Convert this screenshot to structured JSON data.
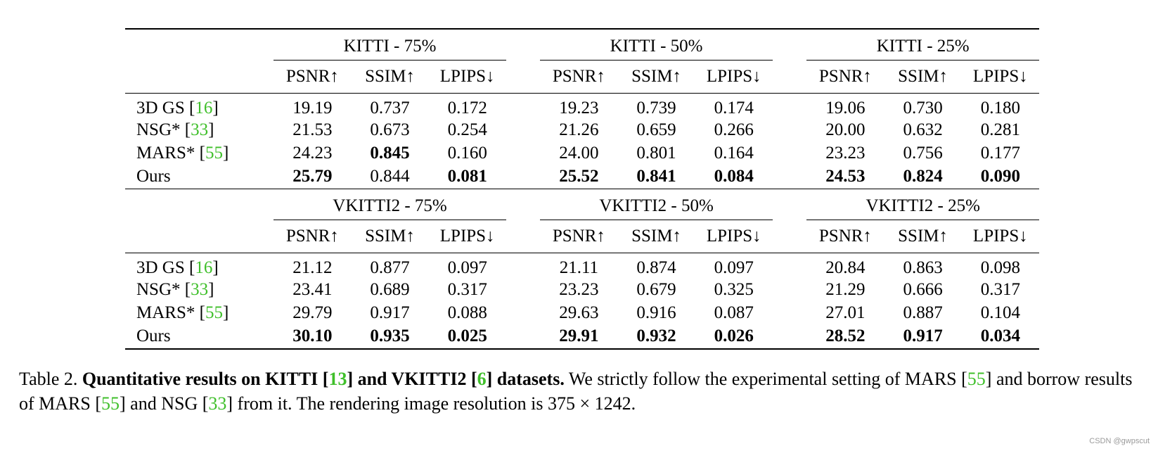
{
  "table": {
    "groups": [
      {
        "titles": [
          "KITTI - 75%",
          "KITTI - 50%",
          "KITTI - 25%"
        ],
        "metrics": [
          "PSNR↑",
          "SSIM↑",
          "LPIPS↓"
        ],
        "rows": [
          {
            "method": "3D GS [",
            "ref": "16",
            "close": "]",
            "values": [
              "19.19",
              "0.737",
              "0.172",
              "19.23",
              "0.739",
              "0.174",
              "19.06",
              "0.730",
              "0.180"
            ]
          },
          {
            "method": "NSG* [",
            "ref": "33",
            "close": "]",
            "values": [
              "21.53",
              "0.673",
              "0.254",
              "21.26",
              "0.659",
              "0.266",
              "20.00",
              "0.632",
              "0.281"
            ]
          },
          {
            "method": "MARS* [",
            "ref": "55",
            "close": "]",
            "values": [
              "24.23",
              "0.845",
              "0.160",
              "24.00",
              "0.801",
              "0.164",
              "23.23",
              "0.756",
              "0.177"
            ]
          },
          {
            "method": "Ours",
            "ref": "",
            "close": "",
            "values": [
              "25.79",
              "0.844",
              "0.081",
              "25.52",
              "0.841",
              "0.084",
              "24.53",
              "0.824",
              "0.090"
            ]
          }
        ]
      },
      {
        "titles": [
          "VKITTI2 - 75%",
          "VKITTI2 - 50%",
          "VKITTI2 - 25%"
        ],
        "metrics": [
          "PSNR↑",
          "SSIM↑",
          "LPIPS↓"
        ],
        "rows": [
          {
            "method": "3D GS [",
            "ref": "16",
            "close": "]",
            "values": [
              "21.12",
              "0.877",
              "0.097",
              "21.11",
              "0.874",
              "0.097",
              "20.84",
              "0.863",
              "0.098"
            ]
          },
          {
            "method": "NSG* [",
            "ref": "33",
            "close": "]",
            "values": [
              "23.41",
              "0.689",
              "0.317",
              "23.23",
              "0.679",
              "0.325",
              "21.29",
              "0.666",
              "0.317"
            ]
          },
          {
            "method": "MARS* [",
            "ref": "55",
            "close": "]",
            "values": [
              "29.79",
              "0.917",
              "0.088",
              "29.63",
              "0.916",
              "0.087",
              "27.01",
              "0.887",
              "0.104"
            ]
          },
          {
            "method": "Ours",
            "ref": "",
            "close": "",
            "values": [
              "30.10",
              "0.935",
              "0.025",
              "29.91",
              "0.932",
              "0.026",
              "28.52",
              "0.917",
              "0.034"
            ]
          }
        ]
      }
    ]
  },
  "caption": {
    "label": "Table 2.",
    "bold_1": "Quantitative results on KITTI [",
    "ref_1": "13",
    "bold_2": "] and VKITTI2 [",
    "ref_2": "6",
    "bold_3": "] datasets.",
    "text_1": " We strictly follow the experimental setting of MARS [",
    "ref_3": "55",
    "text_2": "] and borrow results of MARS [",
    "ref_4": "55",
    "text_3": "] and NSG [",
    "ref_5": "33",
    "text_4": "] from it. The rendering image resolution is 375 × 1242."
  },
  "watermark": "CSDN @gwpscut",
  "colors": {
    "reference_link": "#3fbf2a",
    "text": "#000000"
  }
}
